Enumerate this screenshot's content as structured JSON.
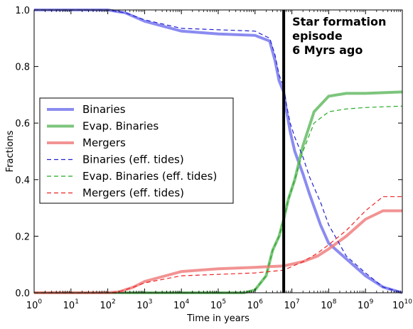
{
  "chart_data": {
    "type": "line",
    "title": "",
    "xlabel": "Time in years",
    "ylabel": "Fractions",
    "xscale": "log",
    "xlim": [
      1,
      10000000000
    ],
    "ylim": [
      0,
      1.0
    ],
    "x_tick_labels": [
      {
        "base": "10",
        "exp": "0"
      },
      {
        "base": "10",
        "exp": "1"
      },
      {
        "base": "10",
        "exp": "2"
      },
      {
        "base": "10",
        "exp": "3"
      },
      {
        "base": "10",
        "exp": "4"
      },
      {
        "base": "10",
        "exp": "5"
      },
      {
        "base": "10",
        "exp": "6"
      },
      {
        "base": "10",
        "exp": "7"
      },
      {
        "base": "10",
        "exp": "8"
      },
      {
        "base": "10",
        "exp": "9"
      },
      {
        "base": "10",
        "exp": "10"
      }
    ],
    "y_tick_labels": [
      "0.0",
      "0.2",
      "0.4",
      "0.6",
      "0.8",
      "1.0"
    ],
    "legend_position": "center-left",
    "annotation": {
      "lines": [
        "Star formation",
        "episode",
        "6 Myrs ago"
      ],
      "vline_x": 6000000
    },
    "series": [
      {
        "name": "Binaries",
        "style": "solid",
        "color": "#7777ee",
        "points": [
          [
            1,
            1.0
          ],
          [
            100,
            1.0
          ],
          [
            300,
            0.99
          ],
          [
            1000,
            0.96
          ],
          [
            10000,
            0.925
          ],
          [
            100000,
            0.915
          ],
          [
            1000000,
            0.91
          ],
          [
            2500000,
            0.89
          ],
          [
            3500000,
            0.82
          ],
          [
            4500000,
            0.75
          ],
          [
            6000000,
            0.71
          ],
          [
            7000000,
            0.65
          ],
          [
            9000000,
            0.57
          ],
          [
            12000000,
            0.5
          ],
          [
            20000000,
            0.42
          ],
          [
            30000000,
            0.35
          ],
          [
            60000000,
            0.24
          ],
          [
            100000000,
            0.175
          ],
          [
            300000000,
            0.12
          ],
          [
            1000000000,
            0.06
          ],
          [
            3000000000,
            0.02
          ],
          [
            10000000000,
            0.0
          ]
        ]
      },
      {
        "name": "Evap. Binaries",
        "style": "solid",
        "color": "#66bb66",
        "points": [
          [
            1,
            0.0
          ],
          [
            500000,
            0.0
          ],
          [
            1000000,
            0.01
          ],
          [
            2000000,
            0.06
          ],
          [
            3000000,
            0.15
          ],
          [
            4500000,
            0.2
          ],
          [
            6000000,
            0.26
          ],
          [
            8000000,
            0.33
          ],
          [
            12000000,
            0.4
          ],
          [
            20000000,
            0.52
          ],
          [
            40000000,
            0.64
          ],
          [
            100000000,
            0.695
          ],
          [
            300000000,
            0.705
          ],
          [
            1000000000,
            0.705
          ],
          [
            10000000000,
            0.71
          ]
        ]
      },
      {
        "name": "Mergers",
        "style": "solid",
        "color": "#f08080",
        "points": [
          [
            1,
            0.0
          ],
          [
            100,
            0.0
          ],
          [
            200,
            0.003
          ],
          [
            500,
            0.02
          ],
          [
            1000,
            0.04
          ],
          [
            10000,
            0.075
          ],
          [
            100000,
            0.085
          ],
          [
            1000000,
            0.09
          ],
          [
            6000000,
            0.095
          ],
          [
            20000000,
            0.11
          ],
          [
            50000000,
            0.13
          ],
          [
            100000000,
            0.155
          ],
          [
            300000000,
            0.2
          ],
          [
            1000000000,
            0.26
          ],
          [
            3000000000,
            0.29
          ],
          [
            10000000000,
            0.29
          ]
        ]
      },
      {
        "name": "Binaries (eff. tides)",
        "style": "dashed",
        "color": "#2222cc",
        "points": [
          [
            1,
            1.0
          ],
          [
            100,
            1.0
          ],
          [
            300,
            0.99
          ],
          [
            1000,
            0.965
          ],
          [
            10000,
            0.935
          ],
          [
            100000,
            0.93
          ],
          [
            1000000,
            0.925
          ],
          [
            2500000,
            0.9
          ],
          [
            3500000,
            0.84
          ],
          [
            4500000,
            0.77
          ],
          [
            6000000,
            0.73
          ],
          [
            7000000,
            0.67
          ],
          [
            9000000,
            0.6
          ],
          [
            12000000,
            0.55
          ],
          [
            20000000,
            0.48
          ],
          [
            30000000,
            0.41
          ],
          [
            60000000,
            0.32
          ],
          [
            100000000,
            0.24
          ],
          [
            300000000,
            0.13
          ],
          [
            1000000000,
            0.07
          ],
          [
            3000000000,
            0.02
          ],
          [
            10000000000,
            0.0
          ]
        ]
      },
      {
        "name": "Evap. Binaries (eff. tides)",
        "style": "dashed",
        "color": "#22aa22",
        "points": [
          [
            1,
            0.0
          ],
          [
            500000,
            0.0
          ],
          [
            1000000,
            0.01
          ],
          [
            2000000,
            0.06
          ],
          [
            3000000,
            0.15
          ],
          [
            4500000,
            0.2
          ],
          [
            6000000,
            0.26
          ],
          [
            8000000,
            0.33
          ],
          [
            12000000,
            0.4
          ],
          [
            20000000,
            0.5
          ],
          [
            40000000,
            0.6
          ],
          [
            100000000,
            0.64
          ],
          [
            300000000,
            0.65
          ],
          [
            1000000000,
            0.655
          ],
          [
            10000000000,
            0.66
          ]
        ]
      },
      {
        "name": "Mergers (eff. tides)",
        "style": "dashed",
        "color": "#ee2222",
        "points": [
          [
            1,
            0.0
          ],
          [
            100,
            0.0
          ],
          [
            200,
            0.003
          ],
          [
            500,
            0.02
          ],
          [
            1000,
            0.035
          ],
          [
            10000,
            0.06
          ],
          [
            100000,
            0.065
          ],
          [
            1000000,
            0.07
          ],
          [
            6000000,
            0.08
          ],
          [
            20000000,
            0.11
          ],
          [
            50000000,
            0.14
          ],
          [
            100000000,
            0.17
          ],
          [
            300000000,
            0.22
          ],
          [
            1000000000,
            0.29
          ],
          [
            3000000000,
            0.34
          ],
          [
            10000000000,
            0.34
          ]
        ]
      }
    ]
  }
}
